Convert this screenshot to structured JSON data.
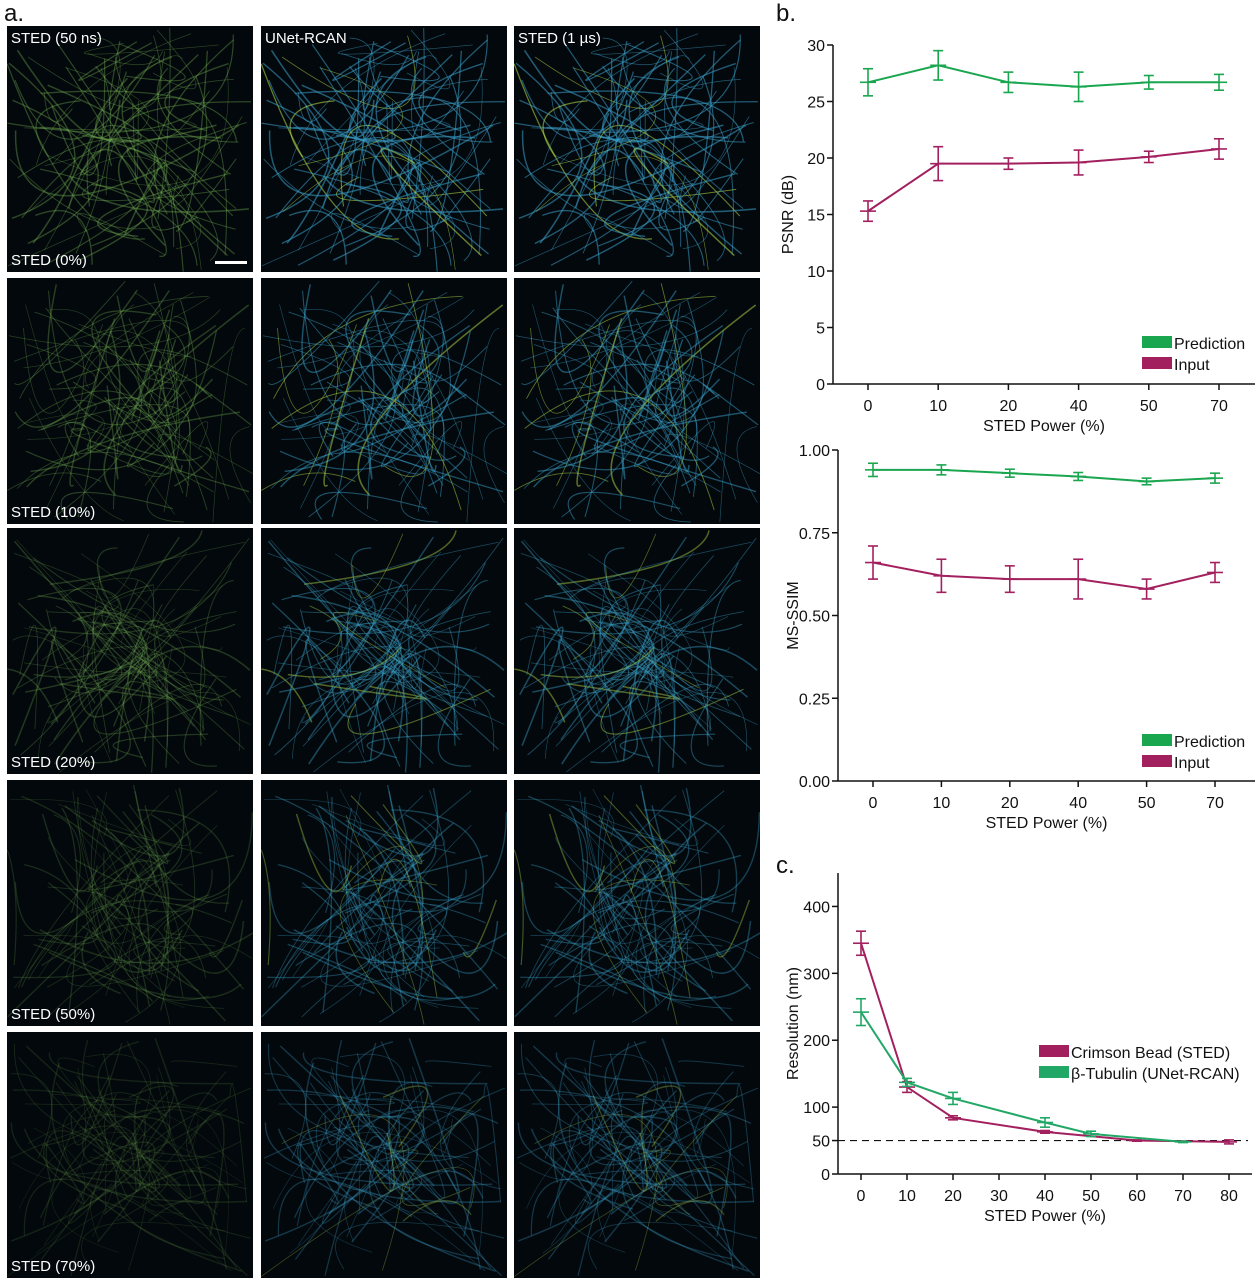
{
  "panel_labels": {
    "a": "a.",
    "b": "b.",
    "c": "c."
  },
  "image_grid": {
    "column_titles": [
      "STED (50 ns)",
      "UNet-RCAN",
      "STED (1 µs)"
    ],
    "row_labels": [
      "STED (0%)",
      "STED (10%)",
      "STED (20%)",
      "STED (50%)",
      "STED (70%)"
    ],
    "column_colors": [
      "#7fbf5a",
      "#3a9fc8",
      "#3a9fc8"
    ]
  },
  "chart_data": [
    {
      "type": "line",
      "ylabel": "PSNR (dB)",
      "xlabel": "STED Power (%)",
      "categories": [
        "0",
        "10",
        "20",
        "40",
        "50",
        "70"
      ],
      "ylim": [
        0,
        30
      ],
      "yticks": [
        0,
        5,
        10,
        15,
        20,
        25,
        30
      ],
      "legend_position": "bottom-right",
      "grid": false,
      "series": [
        {
          "name": "Prediction",
          "color": "#1aa64f",
          "values": [
            26.7,
            28.2,
            26.7,
            26.3,
            26.7,
            26.7
          ],
          "errors": [
            1.2,
            1.3,
            0.9,
            1.3,
            0.6,
            0.7
          ]
        },
        {
          "name": "Input",
          "color": "#a3205f",
          "values": [
            15.3,
            19.5,
            19.5,
            19.6,
            20.1,
            20.8
          ],
          "errors": [
            0.9,
            1.5,
            0.5,
            1.1,
            0.5,
            0.9
          ]
        }
      ]
    },
    {
      "type": "line",
      "ylabel": "MS-SSIM",
      "xlabel": "STED Power (%)",
      "categories": [
        "0",
        "10",
        "20",
        "40",
        "50",
        "70"
      ],
      "ylim": [
        0,
        1
      ],
      "yticks": [
        "0.00",
        "0.25",
        "0.50",
        "0.75",
        "1.00"
      ],
      "legend_position": "bottom-right",
      "grid": false,
      "series": [
        {
          "name": "Prediction",
          "color": "#1aa64f",
          "values": [
            0.94,
            0.94,
            0.93,
            0.92,
            0.905,
            0.915
          ],
          "errors": [
            0.02,
            0.015,
            0.012,
            0.012,
            0.01,
            0.015
          ]
        },
        {
          "name": "Input",
          "color": "#a3205f",
          "values": [
            0.66,
            0.62,
            0.61,
            0.61,
            0.58,
            0.63
          ],
          "errors": [
            0.05,
            0.05,
            0.04,
            0.06,
            0.03,
            0.03
          ]
        }
      ]
    },
    {
      "type": "line",
      "ylabel": "Resolution (nm)",
      "xlabel": "STED Power (%)",
      "xlim": [
        -5,
        85
      ],
      "xticks": [
        0,
        10,
        20,
        30,
        40,
        50,
        60,
        70,
        80
      ],
      "ylim": [
        0,
        450
      ],
      "yticks": [
        0,
        50,
        100,
        200,
        300,
        400
      ],
      "reference_line": 50,
      "legend_position": "center-right",
      "grid": false,
      "series": [
        {
          "name": "Crimson Bead (STED)",
          "color": "#a3205f",
          "x": [
            0,
            10,
            20,
            40,
            60,
            80
          ],
          "values": [
            345,
            130,
            84,
            63,
            50,
            48
          ],
          "errors": [
            18,
            8,
            3,
            2,
            1,
            3
          ]
        },
        {
          "name": "β-Tubulin (UNet-RCAN)",
          "color": "#22a866",
          "x": [
            0,
            10,
            20,
            40,
            50,
            70
          ],
          "values": [
            242,
            137,
            113,
            77,
            60,
            48
          ],
          "errors": [
            20,
            6,
            9,
            7,
            4,
            1
          ]
        }
      ]
    }
  ]
}
